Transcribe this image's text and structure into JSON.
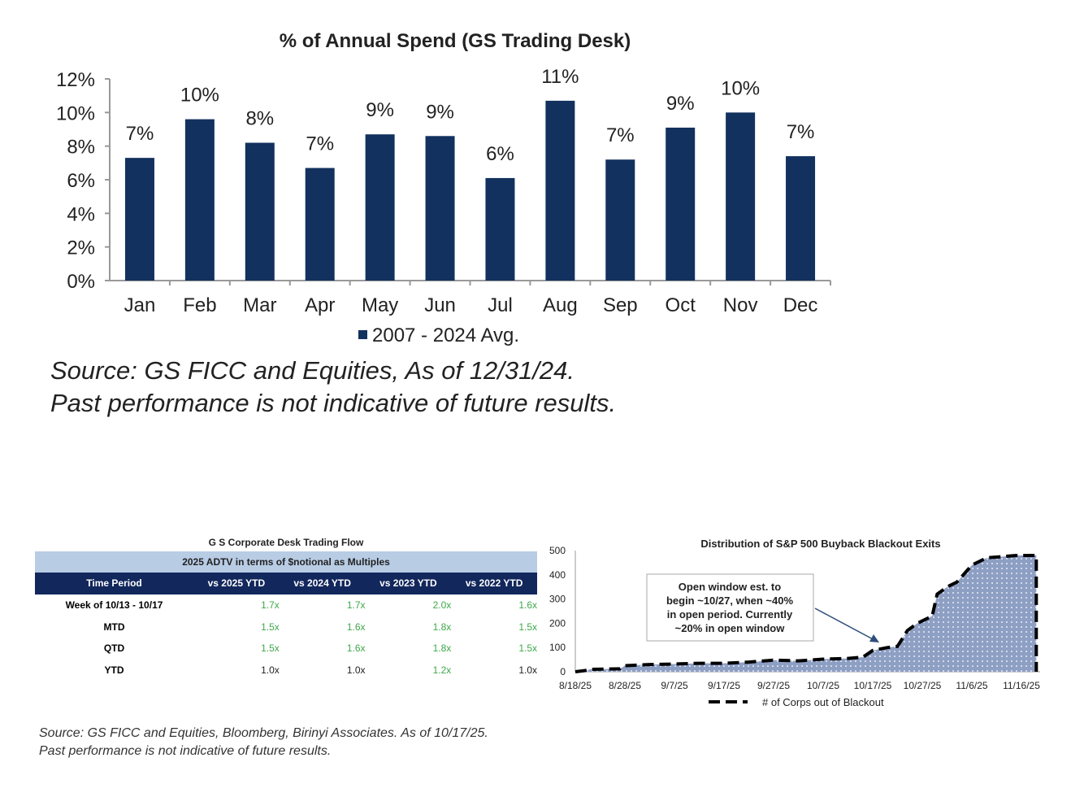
{
  "chart_data": [
    {
      "type": "bar",
      "title": "% of Annual Spend (GS Trading Desk)",
      "categories": [
        "Jan",
        "Feb",
        "Mar",
        "Apr",
        "May",
        "Jun",
        "Jul",
        "Aug",
        "Sep",
        "Oct",
        "Nov",
        "Dec"
      ],
      "series": [
        {
          "name": "2007 - 2024 Avg.",
          "values": [
            7.3,
            9.6,
            8.2,
            6.7,
            8.7,
            8.6,
            6.1,
            10.7,
            7.2,
            9.1,
            10.0,
            7.4
          ],
          "labels": [
            "7%",
            "10%",
            "8%",
            "7%",
            "9%",
            "9%",
            "6%",
            "11%",
            "7%",
            "9%",
            "10%",
            "7%"
          ]
        }
      ],
      "ylim": [
        0,
        12
      ],
      "yticks": [
        "0%",
        "2%",
        "4%",
        "6%",
        "8%",
        "10%",
        "12%"
      ],
      "color": "#12315e",
      "legend": "bottom"
    },
    {
      "type": "area",
      "title": "Distribution of S&P 500 Buyback Blackout Exits",
      "series": [
        {
          "name": "# of Corps out of Blackout",
          "points": [
            [
              "8/18/25",
              0
            ],
            [
              "8/20/25",
              5
            ],
            [
              "8/21/25",
              10
            ],
            [
              "8/27/25",
              12
            ],
            [
              "8/28/25",
              25
            ],
            [
              "9/2/25",
              30
            ],
            [
              "9/7/25",
              32
            ],
            [
              "9/12/25",
              35
            ],
            [
              "9/17/25",
              35
            ],
            [
              "9/22/25",
              40
            ],
            [
              "9/27/25",
              48
            ],
            [
              "10/2/25",
              45
            ],
            [
              "10/7/25",
              52
            ],
            [
              "10/12/25",
              55
            ],
            [
              "10/15/25",
              60
            ],
            [
              "10/17/25",
              88
            ],
            [
              "10/20/25",
              100
            ],
            [
              "10/22/25",
              105
            ],
            [
              "10/24/25",
              170
            ],
            [
              "10/26/25",
              200
            ],
            [
              "10/29/25",
              230
            ],
            [
              "10/30/25",
              320
            ],
            [
              "11/1/25",
              350
            ],
            [
              "11/3/25",
              370
            ],
            [
              "11/6/25",
              440
            ],
            [
              "11/9/25",
              470
            ],
            [
              "11/12/25",
              475
            ],
            [
              "11/15/25",
              480
            ],
            [
              "11/19/25",
              480
            ]
          ]
        }
      ],
      "ylim": [
        0,
        500
      ],
      "yticks": [
        "0",
        "100",
        "200",
        "300",
        "400",
        "500"
      ],
      "xticks": [
        "8/18/25",
        "8/28/25",
        "9/7/25",
        "9/17/25",
        "9/27/25",
        "10/7/25",
        "10/17/25",
        "10/27/25",
        "11/6/25",
        "11/16/25"
      ],
      "annotation": [
        "Open window est. to",
        "begin ~10/27, when ~40%",
        "in open period. Currently",
        "~20% in open window"
      ],
      "fill": "#8e9fc4",
      "legend": "bottom"
    }
  ],
  "source1": [
    "Source: GS FICC and Equities, As of 12/31/24.",
    "Past performance is not indicative of future results."
  ],
  "table": {
    "title": "G S Corporate Desk Trading Flow",
    "subtitle": "2025 ADTV in terms of $notional as Multiples",
    "headers": [
      "Time Period",
      "vs 2025 YTD",
      "vs 2024 YTD",
      "vs 2023 YTD",
      "vs 2022 YTD"
    ],
    "rows": [
      [
        "Week of 10/13 - 10/17",
        "1.7x",
        "1.7x",
        "2.0x",
        "1.6x"
      ],
      [
        "MTD",
        "1.5x",
        "1.6x",
        "1.8x",
        "1.5x"
      ],
      [
        "QTD",
        "1.5x",
        "1.6x",
        "1.8x",
        "1.5x"
      ],
      [
        "YTD",
        "1.0x",
        "1.0x",
        "1.2x",
        "1.0x"
      ]
    ],
    "green": [
      [
        1,
        1,
        1,
        1
      ],
      [
        1,
        1,
        1,
        1
      ],
      [
        1,
        1,
        1,
        1
      ],
      [
        0,
        0,
        1,
        0
      ]
    ]
  },
  "source2": [
    "Source: GS FICC and Equities, Bloomberg, Birinyi Associates. As of 10/17/25.",
    "Past performance is not indicative of future results."
  ]
}
